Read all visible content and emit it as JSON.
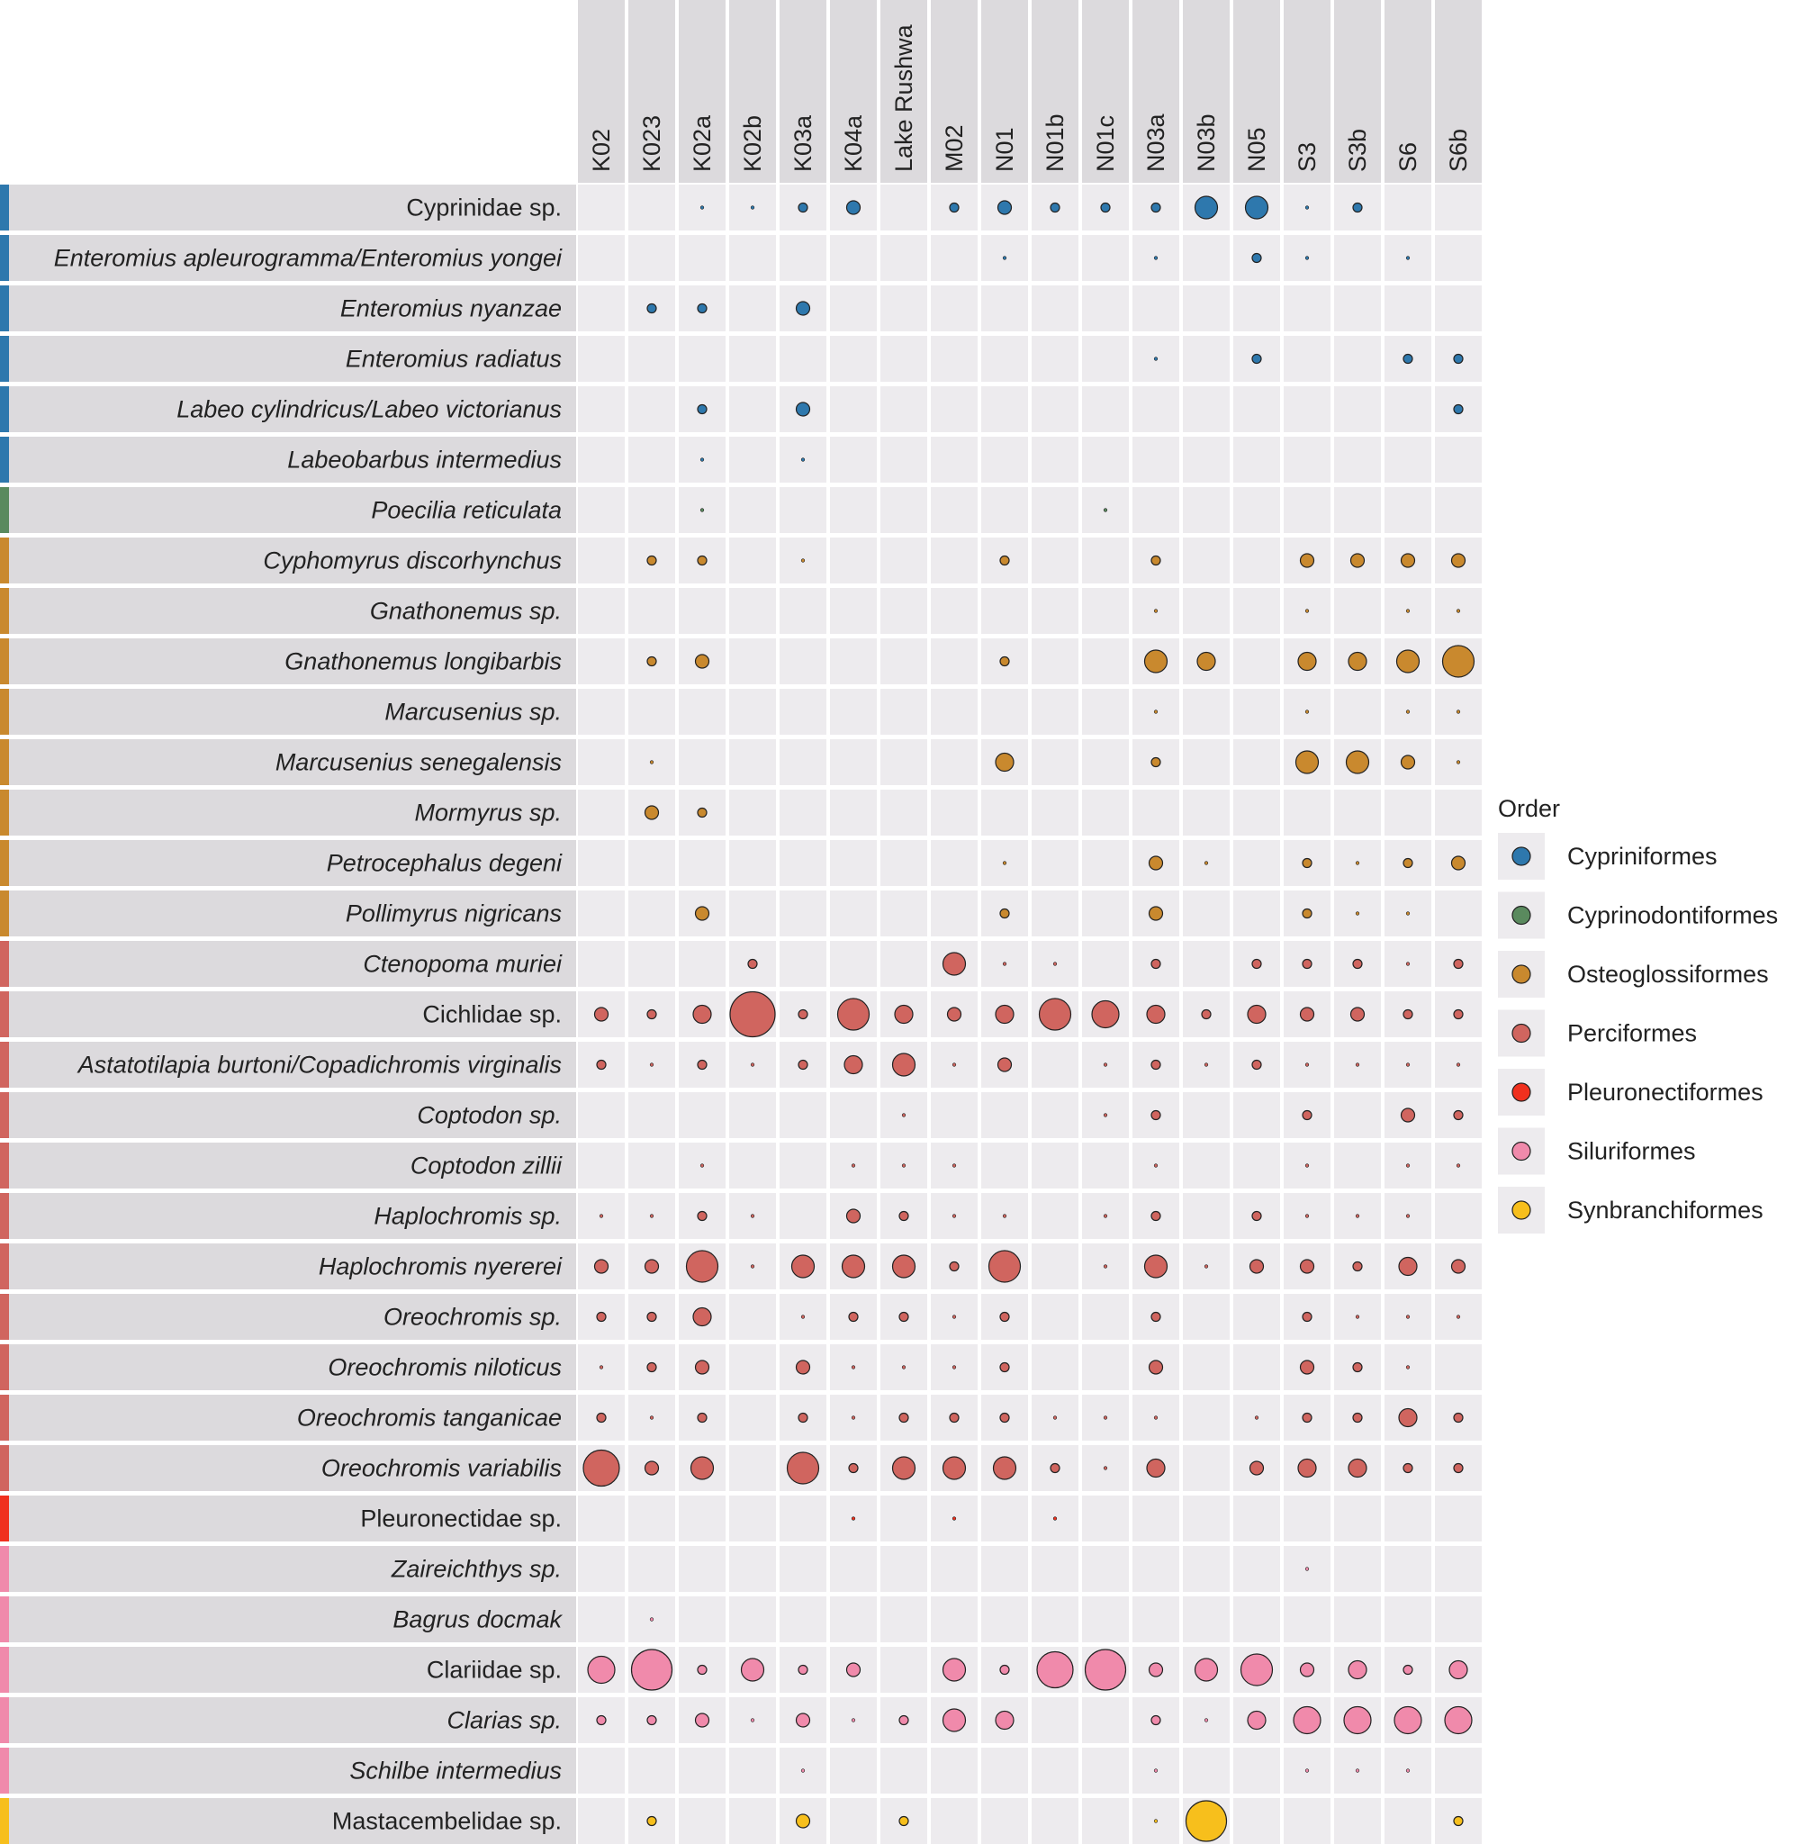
{
  "chart_data": {
    "type": "bubble-matrix",
    "columns": [
      "K02",
      "K023",
      "K02a",
      "K02b",
      "K03a",
      "K04a",
      "Lake Rushwa",
      "M02",
      "N01",
      "N01b",
      "N01c",
      "N03a",
      "N03b",
      "N05",
      "S3",
      "S3b",
      "S6",
      "S6b"
    ],
    "rows": [
      {
        "name": "Cyprinidae sp.",
        "italic": false,
        "order": "Cypriniformes"
      },
      {
        "name": "Enteromius apleurogramma/Enteromius yongei",
        "italic": true,
        "order": "Cypriniformes"
      },
      {
        "name": "Enteromius nyanzae",
        "italic": true,
        "order": "Cypriniformes"
      },
      {
        "name": "Enteromius radiatus",
        "italic": true,
        "order": "Cypriniformes"
      },
      {
        "name": "Labeo cylindricus/Labeo victorianus",
        "italic": true,
        "order": "Cypriniformes"
      },
      {
        "name": "Labeobarbus intermedius",
        "italic": true,
        "order": "Cypriniformes"
      },
      {
        "name": "Poecilia reticulata",
        "italic": true,
        "order": "Cyprinodontiformes"
      },
      {
        "name": "Cyphomyrus discorhynchus",
        "italic": true,
        "order": "Osteoglossiformes"
      },
      {
        "name": "Gnathonemus sp.",
        "italic": true,
        "order": "Osteoglossiformes"
      },
      {
        "name": "Gnathonemus longibarbis",
        "italic": true,
        "order": "Osteoglossiformes"
      },
      {
        "name": "Marcusenius sp.",
        "italic": true,
        "order": "Osteoglossiformes"
      },
      {
        "name": "Marcusenius senegalensis",
        "italic": true,
        "order": "Osteoglossiformes"
      },
      {
        "name": "Mormyrus sp.",
        "italic": true,
        "order": "Osteoglossiformes"
      },
      {
        "name": "Petrocephalus degeni",
        "italic": true,
        "order": "Osteoglossiformes"
      },
      {
        "name": "Pollimyrus nigricans",
        "italic": true,
        "order": "Osteoglossiformes"
      },
      {
        "name": "Ctenopoma muriei",
        "italic": true,
        "order": "Perciformes"
      },
      {
        "name": "Cichlidae sp.",
        "italic": false,
        "order": "Perciformes"
      },
      {
        "name": "Astatotilapia burtoni/Copadichromis virginalis",
        "italic": true,
        "order": "Perciformes"
      },
      {
        "name": "Coptodon sp.",
        "italic": true,
        "order": "Perciformes"
      },
      {
        "name": "Coptodon zillii",
        "italic": true,
        "order": "Perciformes"
      },
      {
        "name": "Haplochromis sp.",
        "italic": true,
        "order": "Perciformes"
      },
      {
        "name": "Haplochromis nyererei",
        "italic": true,
        "order": "Perciformes"
      },
      {
        "name": "Oreochromis sp.",
        "italic": true,
        "order": "Perciformes"
      },
      {
        "name": "Oreochromis niloticus",
        "italic": true,
        "order": "Perciformes"
      },
      {
        "name": "Oreochromis tanganicae",
        "italic": true,
        "order": "Perciformes"
      },
      {
        "name": "Oreochromis variabilis",
        "italic": true,
        "order": "Perciformes"
      },
      {
        "name": "Pleuronectidae sp.",
        "italic": false,
        "order": "Pleuronectiformes"
      },
      {
        "name": "Zaireichthys sp.",
        "italic": true,
        "order": "Siluriformes"
      },
      {
        "name": "Bagrus docmak",
        "italic": true,
        "order": "Siluriformes"
      },
      {
        "name": "Clariidae sp.",
        "italic": false,
        "order": "Siluriformes"
      },
      {
        "name": "Clarias sp.",
        "italic": true,
        "order": "Siluriformes"
      },
      {
        "name": "Schilbe intermedius",
        "italic": true,
        "order": "Siluriformes"
      },
      {
        "name": "Mastacembelidae sp.",
        "italic": false,
        "order": "Synbranchiformes"
      }
    ],
    "values": [
      [
        0,
        0,
        1,
        1,
        2,
        3,
        0,
        2,
        3,
        2,
        2,
        2,
        5,
        5,
        1,
        2,
        0,
        0
      ],
      [
        0,
        0,
        0,
        0,
        0,
        0,
        0,
        0,
        1,
        0,
        0,
        1,
        0,
        2,
        1,
        0,
        1,
        0
      ],
      [
        0,
        2,
        2,
        0,
        3,
        0,
        0,
        0,
        0,
        0,
        0,
        0,
        0,
        0,
        0,
        0,
        0,
        0
      ],
      [
        0,
        0,
        0,
        0,
        0,
        0,
        0,
        0,
        0,
        0,
        0,
        1,
        0,
        2,
        0,
        0,
        2,
        2
      ],
      [
        0,
        0,
        2,
        0,
        3,
        0,
        0,
        0,
        0,
        0,
        0,
        0,
        0,
        0,
        0,
        0,
        0,
        2
      ],
      [
        0,
        0,
        1,
        0,
        1,
        0,
        0,
        0,
        0,
        0,
        0,
        0,
        0,
        0,
        0,
        0,
        0,
        0
      ],
      [
        0,
        0,
        1,
        0,
        0,
        0,
        0,
        0,
        0,
        0,
        1,
        0,
        0,
        0,
        0,
        0,
        0,
        0
      ],
      [
        0,
        2,
        2,
        0,
        1,
        0,
        0,
        0,
        2,
        0,
        0,
        2,
        0,
        0,
        3,
        3,
        3,
        3
      ],
      [
        0,
        0,
        0,
        0,
        0,
        0,
        0,
        0,
        0,
        0,
        0,
        1,
        0,
        0,
        1,
        0,
        1,
        1
      ],
      [
        0,
        2,
        3,
        0,
        0,
        0,
        0,
        0,
        2,
        0,
        0,
        5,
        4,
        0,
        4,
        4,
        5,
        7
      ],
      [
        0,
        0,
        0,
        0,
        0,
        0,
        0,
        0,
        0,
        0,
        0,
        1,
        0,
        0,
        1,
        0,
        1,
        1
      ],
      [
        0,
        1,
        0,
        0,
        0,
        0,
        0,
        0,
        4,
        0,
        0,
        2,
        0,
        0,
        5,
        5,
        3,
        1
      ],
      [
        0,
        3,
        2,
        0,
        0,
        0,
        0,
        0,
        0,
        0,
        0,
        0,
        0,
        0,
        0,
        0,
        0,
        0
      ],
      [
        0,
        0,
        0,
        0,
        0,
        0,
        0,
        0,
        1,
        0,
        0,
        3,
        1,
        0,
        2,
        1,
        2,
        3
      ],
      [
        0,
        0,
        3,
        0,
        0,
        0,
        0,
        0,
        2,
        0,
        0,
        3,
        0,
        0,
        2,
        1,
        1,
        0
      ],
      [
        0,
        0,
        0,
        2,
        0,
        0,
        0,
        5,
        1,
        1,
        0,
        2,
        0,
        2,
        2,
        2,
        1,
        2
      ],
      [
        3,
        2,
        4,
        10,
        2,
        7,
        4,
        3,
        4,
        7,
        6,
        4,
        2,
        4,
        3,
        3,
        2,
        2
      ],
      [
        2,
        1,
        2,
        1,
        2,
        4,
        5,
        1,
        3,
        0,
        1,
        2,
        1,
        2,
        1,
        1,
        1,
        1
      ],
      [
        0,
        0,
        0,
        0,
        0,
        0,
        1,
        0,
        0,
        0,
        1,
        2,
        0,
        0,
        2,
        0,
        3,
        2
      ],
      [
        0,
        0,
        1,
        0,
        0,
        1,
        1,
        1,
        0,
        0,
        0,
        1,
        0,
        0,
        1,
        0,
        1,
        1
      ],
      [
        1,
        1,
        2,
        1,
        0,
        3,
        2,
        1,
        1,
        0,
        1,
        2,
        0,
        2,
        1,
        1,
        1,
        0
      ],
      [
        3,
        3,
        7,
        1,
        5,
        5,
        5,
        2,
        7,
        0,
        1,
        5,
        1,
        3,
        3,
        2,
        4,
        3
      ],
      [
        2,
        2,
        4,
        0,
        1,
        2,
        2,
        1,
        2,
        0,
        0,
        2,
        0,
        0,
        2,
        1,
        1,
        1
      ],
      [
        1,
        2,
        3,
        0,
        3,
        1,
        1,
        1,
        2,
        0,
        0,
        3,
        0,
        0,
        3,
        2,
        1,
        0
      ],
      [
        2,
        1,
        2,
        0,
        2,
        1,
        2,
        2,
        2,
        1,
        1,
        1,
        0,
        1,
        2,
        2,
        4,
        2
      ],
      [
        8,
        3,
        5,
        0,
        7,
        2,
        5,
        5,
        5,
        2,
        1,
        4,
        0,
        3,
        4,
        4,
        2,
        2
      ],
      [
        0,
        0,
        0,
        0,
        0,
        1,
        0,
        1,
        0,
        1,
        0,
        0,
        0,
        0,
        0,
        0,
        0,
        0
      ],
      [
        0,
        0,
        0,
        0,
        0,
        0,
        0,
        0,
        0,
        0,
        0,
        0,
        0,
        0,
        1,
        0,
        0,
        0
      ],
      [
        0,
        1,
        0,
        0,
        0,
        0,
        0,
        0,
        0,
        0,
        0,
        0,
        0,
        0,
        0,
        0,
        0,
        0
      ],
      [
        6,
        9,
        2,
        5,
        2,
        3,
        0,
        5,
        2,
        8,
        9,
        3,
        5,
        7,
        3,
        4,
        2,
        4
      ],
      [
        2,
        2,
        3,
        1,
        3,
        1,
        2,
        5,
        4,
        0,
        0,
        2,
        1,
        4,
        6,
        6,
        6,
        6
      ],
      [
        0,
        0,
        0,
        0,
        1,
        0,
        0,
        0,
        0,
        0,
        0,
        1,
        0,
        0,
        1,
        1,
        1,
        0
      ],
      [
        0,
        2,
        0,
        0,
        3,
        0,
        2,
        0,
        0,
        0,
        0,
        1,
        9,
        0,
        0,
        0,
        0,
        2
      ]
    ],
    "legend": {
      "title": "Order",
      "placement": "right",
      "items": [
        {
          "label": "Cypriniformes",
          "color": "#2e78ad"
        },
        {
          "label": "Cyprinodontiformes",
          "color": "#5a8a5e"
        },
        {
          "label": "Osteoglossiformes",
          "color": "#c9892e"
        },
        {
          "label": "Perciformes",
          "color": "#d0655f"
        },
        {
          "label": "Pleuronectiformes",
          "color": "#f0301e"
        },
        {
          "label": "Siluriformes",
          "color": "#f08aab"
        },
        {
          "label": "Synbranchiformes",
          "color": "#f7bf1c"
        }
      ]
    }
  }
}
